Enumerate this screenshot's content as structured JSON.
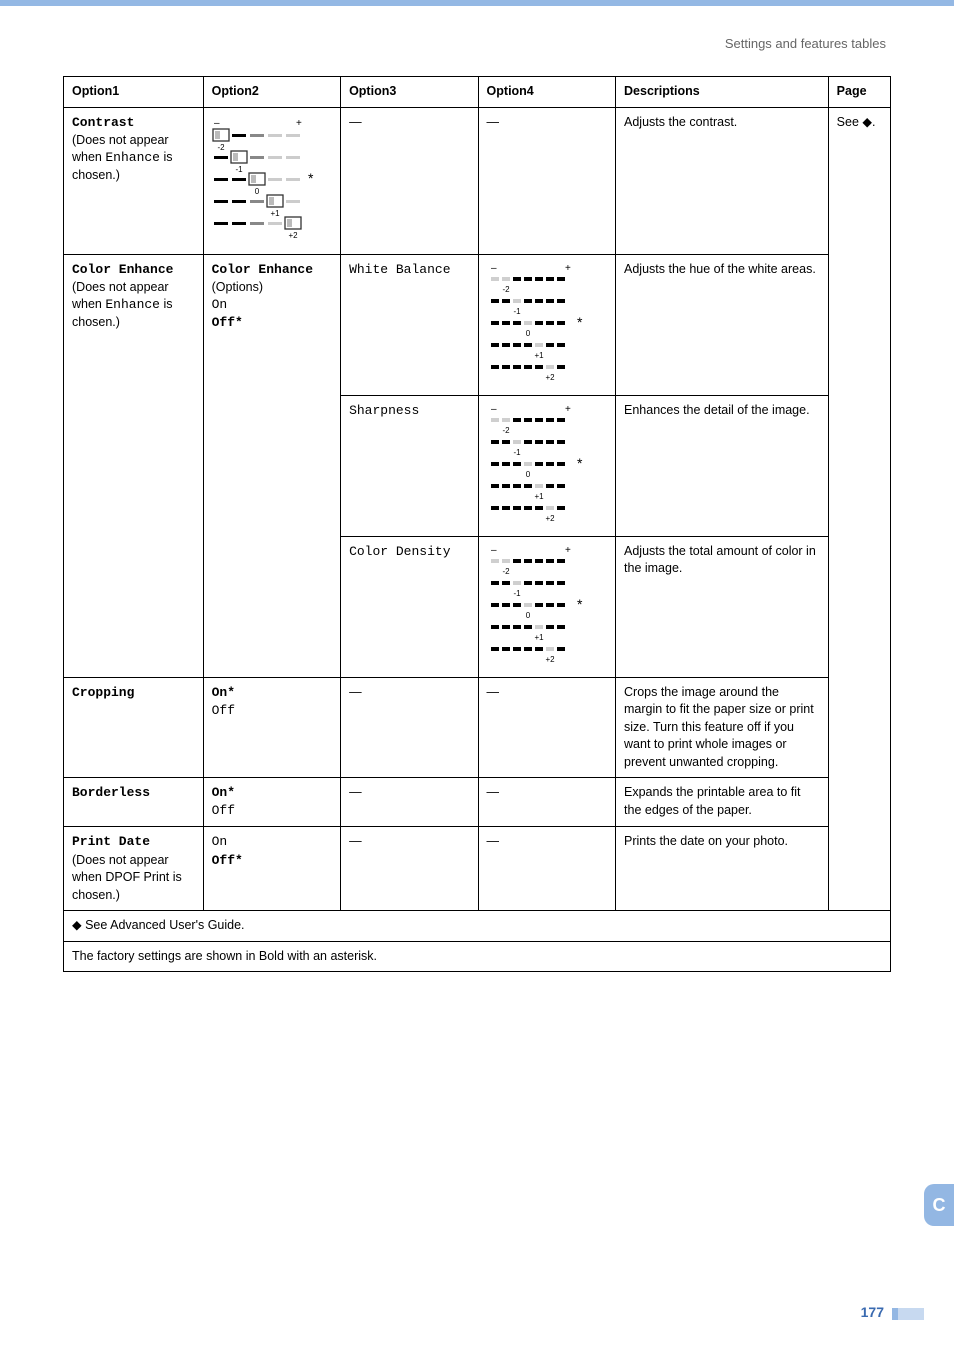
{
  "header": {
    "section": "Settings and features tables"
  },
  "columns": [
    "Option1",
    "Option2",
    "Option3",
    "Option4",
    "Descriptions",
    "Page"
  ],
  "footnotes": {
    "a": "See Advanced User's Guide.",
    "b": "The factory settings are shown in Bold with an asterisk."
  },
  "rows": {
    "contrast": {
      "opt1_label": "Contrast",
      "opt1_note_a": "(Does not appear when",
      "opt1_note_inline": "Enhance",
      "opt1_note_b": "is chosen.)",
      "opt3": "—",
      "opt4": "—",
      "desc": "Adjusts the contrast.",
      "page": "See ◆."
    },
    "color_enhance": {
      "opt1_label": "Color Enhance",
      "opt1_note_a": "(Does not appear when",
      "opt1_note_inline": "Enhance",
      "opt1_note_b": "is chosen.)",
      "opt2_header": "Color Enhance",
      "opt2_options": "(Options)",
      "opt2_on": "On",
      "opt2_off": "Off*",
      "wb": {
        "opt3": "White Balance",
        "desc": "Adjusts the hue of the white areas."
      },
      "sharp": {
        "opt3": "Sharpness",
        "desc": "Enhances the detail of the image."
      },
      "dens": {
        "opt3": "Color Density",
        "desc": "Adjusts the total amount of color in the image."
      }
    },
    "cropping": {
      "opt1": "Cropping",
      "on": "On*",
      "off": "Off",
      "opt3": "—",
      "opt4": "—",
      "desc": "Crops the image around the margin to fit the paper size or print size. Turn this feature off if you want to print whole images or prevent unwanted cropping."
    },
    "borderless": {
      "opt1": "Borderless",
      "on": "On*",
      "off": "Off",
      "opt3": "—",
      "opt4": "—",
      "desc": "Expands the printable area to fit the edges of the paper."
    },
    "printdate": {
      "opt1": "Print Date",
      "note": "(Does not appear when DPOF Print is chosen.)",
      "on": "On",
      "off": "Off*",
      "opt3": "—",
      "opt4": "—",
      "desc": "Prints the date on your photo."
    }
  },
  "page_number": "177",
  "side_tab": "C",
  "graphics": {
    "contrast_widget": {
      "levels": [
        "-2",
        "-1",
        "0",
        "+1",
        "+2"
      ],
      "star_row": 2,
      "thumb_stroke": "#333333",
      "thumb_fill_left": "#ffffff",
      "bar_dark": "#000000",
      "bar_mid": "#888888",
      "bar_light": "#cccccc"
    },
    "slider_widget": {
      "levels": [
        "-2",
        "-1",
        "0",
        "+1",
        "+2"
      ],
      "star_row": 2,
      "seg_dark": "#000000",
      "seg_faint": "#cfcfcf"
    }
  }
}
